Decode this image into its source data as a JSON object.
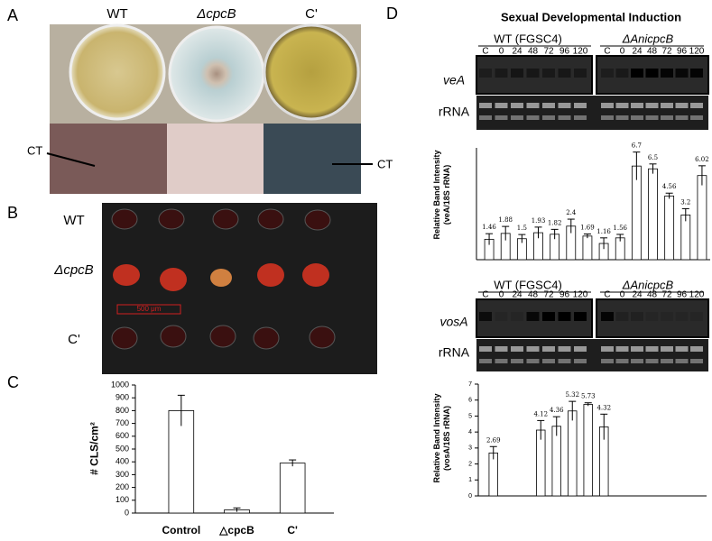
{
  "panels": {
    "labels": [
      "A",
      "B",
      "C",
      "D"
    ]
  },
  "panel_a": {
    "strains": [
      "WT",
      "ΔcpcB",
      "C'"
    ],
    "annotations": [
      "CT",
      "CT"
    ]
  },
  "panel_b": {
    "rows": [
      "WT",
      "ΔcpcB",
      "C'"
    ],
    "scale_bar": "500 μm"
  },
  "panel_d": {
    "title": "Sexual Developmental Induction",
    "blots": [
      {
        "groups": [
          "WT (FGSC4)",
          "ΔAnicpcB"
        ],
        "lanes": [
          "C",
          "0",
          "24",
          "48",
          "72",
          "96",
          "120",
          "C",
          "0",
          "24",
          "48",
          "72",
          "96",
          "120"
        ],
        "gene": "veA",
        "loading": "rRNA"
      },
      {
        "groups": [
          "WT (FGSC4)",
          "ΔAnicpcB"
        ],
        "lanes": [
          "C",
          "0",
          "24",
          "48",
          "72",
          "96",
          "120",
          "C",
          "0",
          "24",
          "48",
          "72",
          "96",
          "120"
        ],
        "gene": "vosA",
        "loading": "rRNA"
      }
    ]
  },
  "chart_data": [
    {
      "type": "bar",
      "ylabel": "# CLS/cm²",
      "categories": [
        "Control",
        "△cpcB",
        "C'"
      ],
      "values": [
        800,
        25,
        390
      ],
      "errors": [
        120,
        15,
        25
      ],
      "color": "#ffffff",
      "ylim": [
        0,
        1000
      ],
      "yticks": [
        0,
        100,
        200,
        300,
        400,
        500,
        600,
        700,
        800,
        900,
        1000
      ]
    },
    {
      "type": "bar",
      "ylabel": "Relative Band Intensity (veA/18S rRNA)",
      "values": [
        1.46,
        1.88,
        1.5,
        1.93,
        1.82,
        2.4,
        1.69,
        1.16,
        1.56,
        6.7,
        6.5,
        4.56,
        3.2,
        6.02
      ],
      "errors": [
        0.4,
        0.5,
        0.3,
        0.4,
        0.35,
        0.5,
        0.15,
        0.4,
        0.25,
        1.0,
        0.35,
        0.2,
        0.45,
        0.7
      ],
      "color": "#ffffff",
      "ylim": [
        0,
        8
      ]
    },
    {
      "type": "bar",
      "ylabel": "Relative Band Intensity (vosA/18S rRNA)",
      "values": [
        2.69,
        null,
        null,
        4.12,
        4.36,
        5.32,
        5.73,
        4.32,
        null,
        null,
        null,
        null,
        null,
        null
      ],
      "errors": [
        0.4,
        null,
        null,
        0.6,
        0.6,
        0.6,
        0.1,
        0.8,
        null,
        null,
        null,
        null,
        null,
        null
      ],
      "color": "#ffffff",
      "ylim": [
        0,
        7
      ],
      "yticks": [
        0,
        1,
        2,
        3,
        4,
        5,
        6,
        7
      ]
    }
  ]
}
